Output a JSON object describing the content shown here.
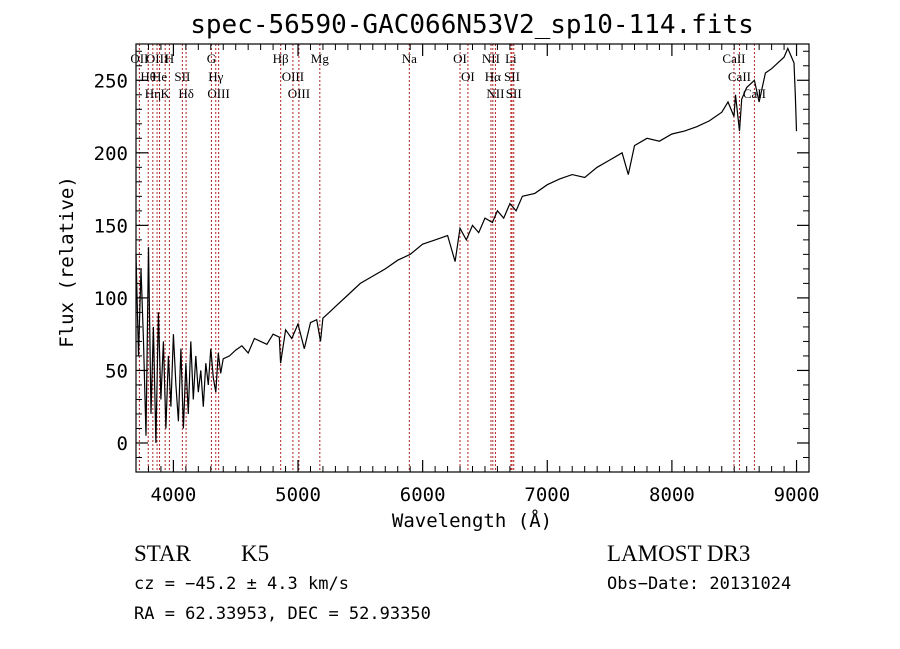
{
  "chart_data": {
    "type": "line",
    "title": "spec-56590-GAC066N53V2_sp10-114.fits",
    "xlabel": "Wavelength (Å)",
    "ylabel": "Flux (relative)",
    "xlim": [
      3700,
      9100
    ],
    "ylim": [
      -20,
      275
    ],
    "xticks": [
      4000,
      5000,
      6000,
      7000,
      8000,
      9000
    ],
    "xtick_labels": [
      "4000",
      "5000",
      "6000",
      "7000",
      "8000",
      "9000"
    ],
    "yticks": [
      0,
      50,
      100,
      150,
      200,
      250
    ],
    "ytick_labels": [
      "0",
      "50",
      "100",
      "150",
      "200",
      "250"
    ],
    "series": [
      {
        "name": "spectrum",
        "x": [
          3700,
          3720,
          3740,
          3760,
          3780,
          3800,
          3820,
          3840,
          3860,
          3880,
          3900,
          3920,
          3940,
          3960,
          3980,
          4000,
          4020,
          4040,
          4060,
          4080,
          4100,
          4120,
          4140,
          4160,
          4180,
          4200,
          4220,
          4240,
          4260,
          4280,
          4300,
          4320,
          4340,
          4360,
          4380,
          4400,
          4450,
          4500,
          4550,
          4600,
          4650,
          4700,
          4750,
          4800,
          4850,
          4860,
          4900,
          4950,
          5000,
          5050,
          5100,
          5150,
          5180,
          5200,
          5250,
          5300,
          5400,
          5500,
          5600,
          5700,
          5800,
          5900,
          6000,
          6100,
          6200,
          6260,
          6300,
          6350,
          6400,
          6450,
          6500,
          6560,
          6600,
          6650,
          6700,
          6750,
          6800,
          6900,
          7000,
          7100,
          7200,
          7300,
          7400,
          7500,
          7600,
          7650,
          7700,
          7800,
          7900,
          8000,
          8100,
          8200,
          8300,
          8400,
          8450,
          8498,
          8510,
          8542,
          8560,
          8600,
          8662,
          8700,
          8750,
          8800,
          8850,
          8900,
          8930,
          8950,
          8980,
          8990,
          9000
        ],
        "y": [
          130,
          60,
          120,
          70,
          5,
          135,
          20,
          80,
          0,
          90,
          30,
          70,
          10,
          60,
          25,
          75,
          40,
          15,
          65,
          10,
          55,
          20,
          70,
          30,
          60,
          35,
          50,
          25,
          55,
          40,
          65,
          45,
          35,
          62,
          48,
          58,
          60,
          64,
          67,
          62,
          72,
          70,
          68,
          75,
          73,
          55,
          78,
          72,
          82,
          65,
          83,
          85,
          70,
          86,
          90,
          94,
          102,
          110,
          115,
          120,
          126,
          130,
          137,
          140,
          143,
          125,
          148,
          140,
          150,
          145,
          155,
          152,
          160,
          155,
          165,
          160,
          170,
          172,
          178,
          182,
          185,
          183,
          190,
          195,
          200,
          185,
          205,
          210,
          208,
          213,
          215,
          218,
          222,
          228,
          235,
          225,
          240,
          215,
          237,
          245,
          250,
          235,
          255,
          258,
          262,
          266,
          272,
          268,
          262,
          240,
          215
        ]
      }
    ],
    "line_markers": [
      {
        "name": "Hθ",
        "x": 3798
      },
      {
        "name": "OII",
        "x": 3727
      },
      {
        "name": "OIII",
        "x": 3869
      },
      {
        "name": "K",
        "x": 3934
      },
      {
        "name": "He",
        "x": 3889
      },
      {
        "name": "Hη",
        "x": 3835
      },
      {
        "name": "H",
        "x": 3968
      },
      {
        "name": "Hδ",
        "x": 4102
      },
      {
        "name": "SII",
        "x": 4072
      },
      {
        "name": "OIII",
        "x": 4363
      },
      {
        "name": "Hγ",
        "x": 4340
      },
      {
        "name": "G",
        "x": 4305
      },
      {
        "name": "OIII",
        "x": 5007
      },
      {
        "name": "OIII",
        "x": 4959
      },
      {
        "name": "Hβ",
        "x": 4861
      },
      {
        "name": "Mg",
        "x": 5175
      },
      {
        "name": "Na",
        "x": 5893
      },
      {
        "name": "OI",
        "x": 6300
      },
      {
        "name": "OI",
        "x": 6363
      },
      {
        "name": "Hα",
        "x": 6563
      },
      {
        "name": "NII",
        "x": 6548
      },
      {
        "name": "NII",
        "x": 6584
      },
      {
        "name": "SII",
        "x": 6717
      },
      {
        "name": "Li",
        "x": 6708
      },
      {
        "name": "SII",
        "x": 6731
      },
      {
        "name": "CaII",
        "x": 8542
      },
      {
        "name": "CaII",
        "x": 8498
      },
      {
        "name": "CaII",
        "x": 8662
      }
    ],
    "marker_color": "#b22222",
    "line_color": "#000000"
  },
  "info": {
    "object_class": "STAR",
    "subclass": "K5",
    "redshift": "cz = −45.2 ± 4.3 km/s",
    "coords": "RA =  62.33953, DEC =  52.93350",
    "survey": "LAMOST DR3",
    "obs_date": "Obs−Date: 20131024"
  }
}
